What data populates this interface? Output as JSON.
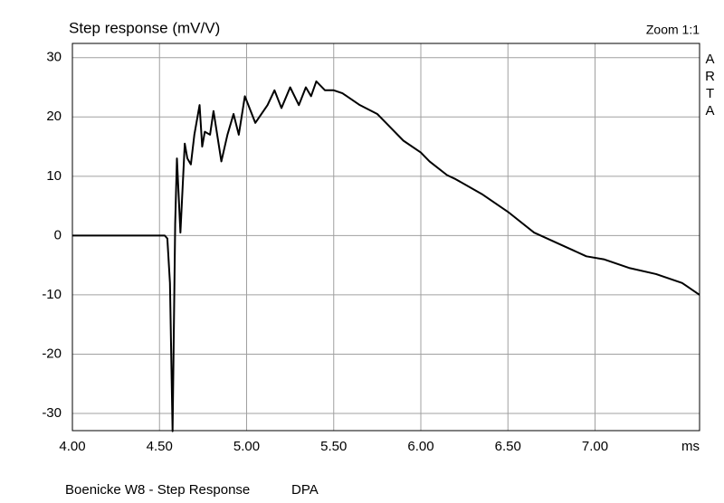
{
  "chart_data": {
    "type": "line",
    "title": "Step response (mV/V)",
    "zoom_label": "Zoom 1:1",
    "brand": "ARTA",
    "x_label": "ms",
    "footer": "Boenicke W8 - Step Response",
    "footer_note": "DPA",
    "xlim": [
      4.0,
      7.6
    ],
    "ylim": [
      -32.9,
      32.4
    ],
    "xticks": [
      {
        "value": 4.0,
        "label": "4.00"
      },
      {
        "value": 4.5,
        "label": "4.50"
      },
      {
        "value": 5.0,
        "label": "5.00"
      },
      {
        "value": 5.5,
        "label": "5.50"
      },
      {
        "value": 6.0,
        "label": "6.00"
      },
      {
        "value": 6.5,
        "label": "6.50"
      },
      {
        "value": 7.0,
        "label": "7.00"
      }
    ],
    "yticks": [
      30,
      20,
      10,
      0,
      -10,
      -20,
      -30
    ],
    "grid": true,
    "x": [
      4.0,
      4.53,
      4.545,
      4.56,
      4.575,
      4.59,
      4.6,
      4.62,
      4.645,
      4.66,
      4.68,
      4.7,
      4.73,
      4.745,
      4.76,
      4.79,
      4.81,
      4.855,
      4.89,
      4.925,
      4.955,
      4.99,
      5.05,
      5.12,
      5.16,
      5.2,
      5.25,
      5.3,
      5.34,
      5.37,
      5.4,
      5.45,
      5.5,
      5.55,
      5.65,
      5.75,
      5.8,
      5.9,
      6.0,
      6.05,
      6.15,
      6.2,
      6.35,
      6.5,
      6.65,
      6.8,
      6.95,
      7.05,
      7.2,
      7.35,
      7.5,
      7.6
    ],
    "series": [
      {
        "name": "Step response",
        "color": "#000000",
        "values": [
          0,
          0,
          -0.5,
          -8,
          -33,
          2,
          13,
          0.5,
          15.5,
          13,
          12,
          17,
          22,
          15,
          17.5,
          17,
          21,
          12.5,
          17,
          20.5,
          17,
          23.5,
          19,
          22,
          24.5,
          21.5,
          25,
          22,
          25,
          23.5,
          26,
          24.5,
          24.5,
          24,
          22,
          20.5,
          19,
          16,
          14,
          12.5,
          10.2,
          9.5,
          7,
          4,
          0.5,
          -1.5,
          -3.5,
          -4,
          -5.5,
          -6.5,
          -8,
          -10
        ]
      }
    ]
  }
}
